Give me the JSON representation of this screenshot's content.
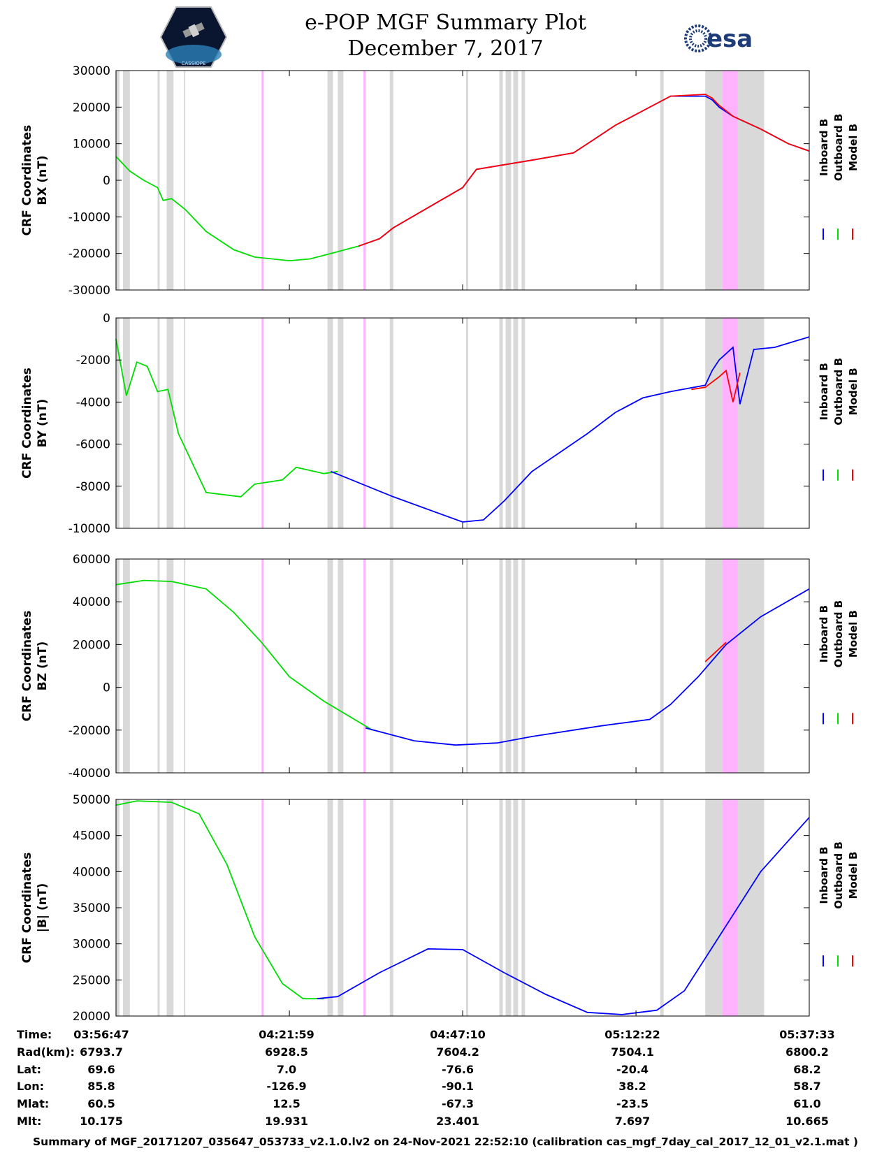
{
  "header": {
    "title_line1": "e-POP MGF Summary Plot",
    "title_line2": "December 7, 2017",
    "left_logo": "CASSIOPE",
    "right_logo": "esa"
  },
  "colors": {
    "inboard": "#0000ff",
    "outboard": "#00dd00",
    "model": "#ff0000",
    "gray_band": "#d9d9d9",
    "pink_band": "#ffb3ff"
  },
  "chart_data": [
    {
      "type": "line",
      "ylabel_line1": "CRF Coordinates",
      "ylabel_line2": "BX (nT)",
      "ylim": [
        -30000,
        30000
      ],
      "yticks": [
        "30000",
        "20000",
        "10000",
        "0",
        "-10000",
        "-20000",
        "-30000"
      ],
      "ytick_values": [
        30000,
        20000,
        10000,
        0,
        -10000,
        -20000,
        -30000
      ],
      "legend": [
        "Inboard B",
        "Outboard B",
        "Model B"
      ],
      "series": [
        {
          "name": "Outboard B",
          "x": [
            0,
            0.02,
            0.04,
            0.06,
            0.068,
            0.08,
            0.1,
            0.13,
            0.17,
            0.2,
            0.25,
            0.28,
            0.31,
            0.35,
            0.38
          ],
          "values": [
            6500,
            2500,
            0,
            -2000,
            -5500,
            -5000,
            -8000,
            -14000,
            -19000,
            -21000,
            -22000,
            -21500,
            -20000,
            -18000,
            -16000
          ]
        },
        {
          "name": "Inboard B",
          "x": [
            0.35,
            0.38,
            0.4,
            0.5,
            0.52,
            0.6,
            0.66,
            0.68,
            0.72,
            0.8,
            0.85,
            0.86,
            0.87,
            0.89,
            0.93,
            0.97,
            1.0
          ],
          "values": [
            -18000,
            -16000,
            -13000,
            -2000,
            3000,
            5500,
            7500,
            10000,
            15000,
            23000,
            23000,
            22000,
            20000,
            17500,
            14000,
            10000,
            8000
          ]
        },
        {
          "name": "Model B",
          "x": [
            0.35,
            0.38,
            0.4,
            0.5,
            0.52,
            0.6,
            0.66,
            0.68,
            0.72,
            0.8,
            0.85,
            0.86,
            0.87,
            0.89,
            0.93,
            0.97,
            1.0
          ],
          "values": [
            -18000,
            -16000,
            -13000,
            -2000,
            3000,
            5500,
            7500,
            10000,
            15000,
            23000,
            23500,
            22500,
            20500,
            17500,
            14000,
            10000,
            8000
          ]
        }
      ]
    },
    {
      "type": "line",
      "ylabel_line1": "CRF Coordinates",
      "ylabel_line2": "BY (nT)",
      "ylim": [
        -10000,
        0
      ],
      "yticks": [
        "0",
        "-2000",
        "-4000",
        "-6000",
        "-8000",
        "-10000"
      ],
      "ytick_values": [
        0,
        -2000,
        -4000,
        -6000,
        -8000,
        -10000
      ],
      "legend": [
        "Inboard B",
        "Outboard B",
        "Model B"
      ],
      "series": [
        {
          "name": "Outboard B",
          "x": [
            0,
            0.015,
            0.03,
            0.045,
            0.06,
            0.075,
            0.09,
            0.13,
            0.18,
            0.2,
            0.24,
            0.26,
            0.3,
            0.32
          ],
          "values": [
            -1000,
            -3700,
            -2100,
            -2300,
            -3500,
            -3400,
            -5500,
            -8300,
            -8500,
            -7900,
            -7700,
            -7100,
            -7400,
            -7300
          ]
        },
        {
          "name": "Inboard B",
          "x": [
            0.31,
            0.4,
            0.5,
            0.53,
            0.56,
            0.6,
            0.68,
            0.72,
            0.76,
            0.8,
            0.85,
            0.86,
            0.87,
            0.89,
            0.9,
            0.92,
            0.95,
            1.0
          ],
          "values": [
            -7300,
            -8500,
            -9700,
            -9600,
            -8700,
            -7300,
            -5500,
            -4500,
            -3800,
            -3500,
            -3200,
            -2500,
            -2000,
            -1400,
            -4100,
            -1500,
            -1400,
            -900
          ]
        },
        {
          "name": "Model B",
          "x": [
            0.83,
            0.85,
            0.87,
            0.88,
            0.89,
            0.9
          ],
          "values": [
            -3400,
            -3300,
            -2800,
            -2500,
            -4000,
            -2600
          ]
        }
      ]
    },
    {
      "type": "line",
      "ylabel_line1": "CRF Coordinates",
      "ylabel_line2": "BZ (nT)",
      "ylim": [
        -40000,
        60000
      ],
      "yticks": [
        "60000",
        "40000",
        "20000",
        "0",
        "-20000",
        "-40000"
      ],
      "ytick_values": [
        60000,
        40000,
        20000,
        0,
        -20000,
        -40000
      ],
      "legend": [
        "Inboard B",
        "Outboard B",
        "Model B"
      ],
      "series": [
        {
          "name": "Outboard B",
          "x": [
            0,
            0.04,
            0.08,
            0.13,
            0.17,
            0.21,
            0.25,
            0.3,
            0.37
          ],
          "values": [
            48000,
            50000,
            49500,
            46000,
            35000,
            21000,
            5000,
            -6500,
            -20000
          ]
        },
        {
          "name": "Inboard B",
          "x": [
            0.36,
            0.43,
            0.49,
            0.55,
            0.6,
            0.7,
            0.77,
            0.8,
            0.84,
            0.88,
            0.93,
            1.0
          ],
          "values": [
            -19000,
            -25000,
            -27000,
            -26000,
            -23000,
            -18000,
            -15000,
            -8000,
            5000,
            20000,
            33000,
            46000
          ]
        },
        {
          "name": "Model B",
          "x": [
            0.85,
            0.86,
            0.87,
            0.88
          ],
          "values": [
            12000,
            15000,
            18000,
            21000
          ]
        }
      ]
    },
    {
      "type": "line",
      "ylabel_line1": "CRF Coordinates",
      "ylabel_line2": "|B| (nT)",
      "ylim": [
        20000,
        50000
      ],
      "yticks": [
        "50000",
        "45000",
        "40000",
        "35000",
        "30000",
        "25000",
        "20000"
      ],
      "ytick_values": [
        50000,
        45000,
        40000,
        35000,
        30000,
        25000,
        20000
      ],
      "legend": [
        "Inboard B",
        "Outboard B",
        "Model B"
      ],
      "series": [
        {
          "name": "Outboard B",
          "x": [
            0,
            0.03,
            0.08,
            0.12,
            0.16,
            0.2,
            0.24,
            0.27,
            0.3
          ],
          "values": [
            49200,
            49800,
            49600,
            48000,
            41000,
            31000,
            24500,
            22400,
            22400
          ]
        },
        {
          "name": "Inboard B",
          "x": [
            0.29,
            0.32,
            0.38,
            0.45,
            0.5,
            0.56,
            0.62,
            0.68,
            0.73,
            0.78,
            0.82,
            0.85,
            0.89,
            0.93,
            1.0
          ],
          "values": [
            22400,
            22700,
            26000,
            29300,
            29200,
            26000,
            23000,
            20500,
            20200,
            20800,
            23500,
            28000,
            34000,
            40000,
            47500
          ]
        }
      ]
    }
  ],
  "x_axis": {
    "range_seconds": [
      0,
      6046
    ],
    "tick_seconds": [
      0,
      1512,
      3023,
      4535,
      6046
    ]
  },
  "gray_bands": [
    [
      0.0,
      0.005
    ],
    [
      0.01,
      0.02
    ],
    [
      0.06,
      0.063
    ],
    [
      0.073,
      0.083
    ],
    [
      0.098,
      0.1
    ],
    [
      0.305,
      0.313
    ],
    [
      0.32,
      0.328
    ],
    [
      0.395,
      0.4
    ],
    [
      0.505,
      0.508
    ],
    [
      0.553,
      0.558
    ],
    [
      0.562,
      0.57
    ],
    [
      0.573,
      0.58
    ],
    [
      0.585,
      0.59
    ],
    [
      0.785,
      0.79
    ],
    [
      0.85,
      0.935
    ]
  ],
  "pink_bands": [
    [
      0.21,
      0.213
    ],
    [
      0.357,
      0.36
    ],
    [
      0.875,
      0.897
    ]
  ],
  "info_table": {
    "labels": [
      "Time:",
      "Rad(km):",
      "Lat:",
      "Lon:",
      "Mlat:",
      "Mlt:"
    ],
    "columns": [
      [
        "03:56:47",
        "6793.7",
        "69.6",
        "85.8",
        "60.5",
        "10.175"
      ],
      [
        "04:21:59",
        "6928.5",
        "7.0",
        "-126.9",
        "12.5",
        "19.931"
      ],
      [
        "04:47:10",
        "7604.2",
        "-76.6",
        "-90.1",
        "-67.3",
        "23.401"
      ],
      [
        "05:12:22",
        "7504.1",
        "-20.4",
        "38.2",
        "-23.5",
        "7.697"
      ],
      [
        "05:37:33",
        "6800.2",
        "68.2",
        "58.7",
        "61.0",
        "10.665"
      ]
    ]
  },
  "footer": "Summary of MGF_20171207_035647_053733_v2.1.0.lv2 on 24-Nov-2021 22:52:10 (calibration cas_mgf_7day_cal_2017_12_01_v2.1.mat )"
}
